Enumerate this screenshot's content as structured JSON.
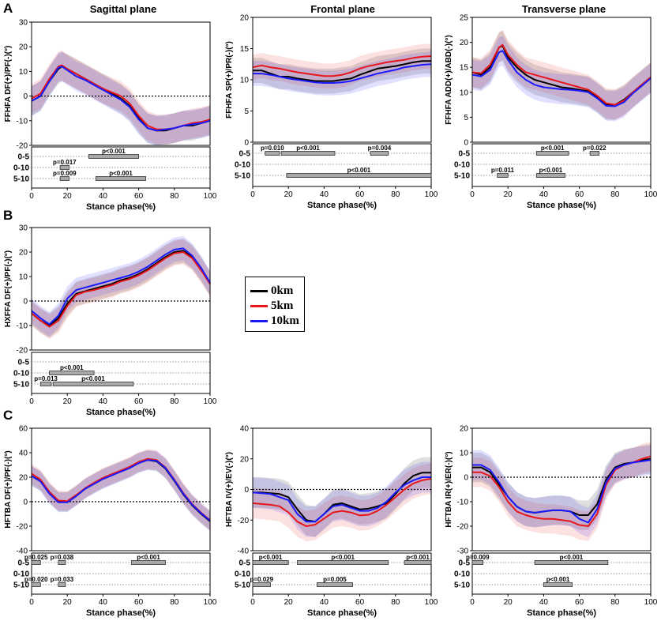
{
  "labels": {
    "A": "A",
    "B": "B",
    "C": "C",
    "sagittal": "Sagittal plane",
    "frontal": "Frontal plane",
    "transverse": "Transverse plane",
    "xlabel": "Stance phase(%)"
  },
  "legend": [
    {
      "name": "0km",
      "color": "#000000"
    },
    {
      "name": "5km",
      "color": "#e8161b"
    },
    {
      "name": "10km",
      "color": "#1a1aff"
    }
  ],
  "chart_data": [
    {
      "id": "A1",
      "type": "line",
      "ylabel": "FFHFA DF(+)/PF(-)(°)",
      "ylim": [
        -20,
        30
      ],
      "yticks": [
        -20,
        -10,
        0,
        10,
        20,
        30
      ],
      "x": [
        0,
        5,
        10,
        15,
        17,
        20,
        25,
        30,
        35,
        40,
        45,
        50,
        55,
        60,
        65,
        70,
        75,
        80,
        85,
        90,
        95,
        100
      ],
      "series": [
        {
          "name": "0km",
          "values": [
            -2,
            0,
            6,
            11,
            12,
            11,
            9,
            7,
            5,
            3,
            1,
            -1,
            -4,
            -9,
            -13,
            -14,
            -14,
            -13,
            -12,
            -12,
            -11,
            -10
          ],
          "sd": 6
        },
        {
          "name": "5km",
          "values": [
            -1,
            1,
            7,
            12,
            12.5,
            11,
            9,
            7,
            5,
            3,
            1.5,
            0,
            -3,
            -8,
            -12,
            -13.5,
            -13.5,
            -13,
            -12,
            -11,
            -10.5,
            -9.5
          ],
          "sd": 6
        },
        {
          "name": "10km",
          "values": [
            -2,
            0,
            6,
            11.5,
            12,
            10.5,
            8,
            6.5,
            4.5,
            2.5,
            0.5,
            -1.5,
            -4.5,
            -9.5,
            -13,
            -14,
            -13.5,
            -13,
            -12,
            -11.5,
            -11,
            -10
          ],
          "sd": 6
        }
      ],
      "sig": {
        "rows": [
          "0-5",
          "0-10",
          "5-10"
        ],
        "bars": [
          {
            "row": 0,
            "x0": 32,
            "x1": 60,
            "p": "p<0.001"
          },
          {
            "row": 1,
            "x0": 16,
            "x1": 21,
            "p": "p=0.017"
          },
          {
            "row": 2,
            "x0": 16,
            "x1": 21,
            "p": "p=0.009"
          },
          {
            "row": 2,
            "x0": 36,
            "x1": 64,
            "p": "p<0.001"
          }
        ]
      }
    },
    {
      "id": "A2",
      "type": "line",
      "ylabel": "FFHFA SP(+)/PR(-)(°)",
      "ylim": [
        0,
        20
      ],
      "yticks": [
        0,
        5,
        10,
        15,
        20
      ],
      "x": [
        0,
        5,
        10,
        15,
        20,
        25,
        30,
        35,
        40,
        45,
        50,
        55,
        60,
        65,
        70,
        75,
        80,
        85,
        90,
        95,
        100
      ],
      "series": [
        {
          "name": "0km",
          "values": [
            11.5,
            11.5,
            11,
            10.5,
            10.5,
            10.2,
            10,
            9.8,
            9.8,
            9.8,
            10,
            10.2,
            10.8,
            11.3,
            11.8,
            12,
            12.2,
            12.5,
            12.8,
            13,
            13
          ],
          "sd": 2
        },
        {
          "name": "5km",
          "values": [
            12,
            12.3,
            12,
            11.8,
            11.5,
            11.2,
            11,
            10.8,
            10.6,
            10.6,
            10.8,
            11.2,
            11.8,
            12.2,
            12.5,
            12.8,
            13,
            13.2,
            13.5,
            13.7,
            13.8
          ],
          "sd": 2
        },
        {
          "name": "10km",
          "values": [
            11,
            11,
            10.8,
            10.5,
            10.2,
            10,
            9.8,
            9.6,
            9.5,
            9.5,
            9.6,
            9.8,
            10.2,
            10.6,
            11,
            11.3,
            11.6,
            12,
            12.2,
            12.4,
            12.5
          ],
          "sd": 2
        }
      ],
      "sig": {
        "rows": [
          "0-5",
          "0-10",
          "5-10"
        ],
        "bars": [
          {
            "row": 0,
            "x0": 7,
            "x1": 15,
            "p": "p=0.010"
          },
          {
            "row": 0,
            "x0": 16,
            "x1": 46,
            "p": "p<0.001"
          },
          {
            "row": 0,
            "x0": 66,
            "x1": 76,
            "p": "p=0.004"
          },
          {
            "row": 2,
            "x0": 19,
            "x1": 100,
            "p": "p<0.001"
          }
        ]
      }
    },
    {
      "id": "A3",
      "type": "line",
      "ylabel": "FFHFA ADD(+)/ABD(-)(°)",
      "ylim": [
        0,
        25
      ],
      "yticks": [
        0,
        5,
        10,
        15,
        20,
        25
      ],
      "x": [
        0,
        5,
        10,
        15,
        17,
        20,
        25,
        30,
        35,
        40,
        45,
        50,
        55,
        60,
        65,
        70,
        75,
        80,
        85,
        90,
        95,
        100
      ],
      "series": [
        {
          "name": "0km",
          "values": [
            14,
            13.5,
            15,
            19,
            19.3,
            17,
            15,
            13.5,
            12.5,
            12,
            11.5,
            11,
            10.8,
            10.5,
            10.2,
            9,
            7.5,
            7.5,
            8.5,
            10,
            11.5,
            13
          ],
          "sd": 3
        },
        {
          "name": "5km",
          "values": [
            14,
            13.8,
            15.5,
            19,
            19.5,
            17.5,
            15.5,
            14,
            13.5,
            13,
            12.5,
            12,
            11.5,
            11,
            10.5,
            9.3,
            7.8,
            7.5,
            8.3,
            10,
            11.5,
            13
          ],
          "sd": 3
        },
        {
          "name": "10km",
          "values": [
            13.5,
            13.2,
            14.5,
            18,
            18.3,
            16.5,
            14,
            12.5,
            11.5,
            11,
            10.8,
            10.6,
            10.5,
            10.3,
            10,
            8.8,
            7.3,
            7.2,
            8,
            9.8,
            11.3,
            12.8
          ],
          "sd": 3
        }
      ],
      "sig": {
        "rows": [
          "0-5",
          "0-10",
          "5-10"
        ],
        "bars": [
          {
            "row": 0,
            "x0": 36,
            "x1": 54,
            "p": "p<0.001"
          },
          {
            "row": 0,
            "x0": 66,
            "x1": 71,
            "p": "p=0.022"
          },
          {
            "row": 2,
            "x0": 14,
            "x1": 20,
            "p": "p=0.011"
          },
          {
            "row": 2,
            "x0": 36,
            "x1": 52,
            "p": "p<0.001"
          }
        ]
      }
    },
    {
      "id": "B1",
      "type": "line",
      "ylabel": "HXFFA DF(+)/PF(-)(°)",
      "ylim": [
        -20,
        30
      ],
      "yticks": [
        -20,
        -10,
        0,
        10,
        20,
        30
      ],
      "x": [
        0,
        5,
        10,
        15,
        20,
        25,
        30,
        35,
        40,
        45,
        50,
        55,
        60,
        65,
        70,
        75,
        80,
        85,
        90,
        95,
        100
      ],
      "series": [
        {
          "name": "0km",
          "values": [
            -5,
            -8,
            -10,
            -7,
            -1,
            3,
            4,
            5,
            6,
            7,
            8.5,
            9.5,
            11,
            13,
            15.5,
            18,
            20,
            20.5,
            18,
            13,
            7
          ],
          "sd": 5
        },
        {
          "name": "5km",
          "values": [
            -5,
            -8,
            -10.5,
            -8,
            -2,
            2.5,
            3.8,
            4.5,
            5.5,
            6.5,
            8,
            9,
            10.5,
            12.5,
            15,
            17.5,
            19.5,
            20,
            17.5,
            12.5,
            7
          ],
          "sd": 5
        },
        {
          "name": "10km",
          "values": [
            -4,
            -7,
            -9.5,
            -6,
            1,
            4.5,
            5.5,
            6.5,
            7.5,
            8.5,
            9.5,
            10.5,
            12,
            14,
            16.5,
            19,
            21,
            21.5,
            18.5,
            13.5,
            7.5
          ],
          "sd": 5
        }
      ],
      "sig": {
        "rows": [
          "0-5",
          "0-10",
          "5-10"
        ],
        "bars": [
          {
            "row": 1,
            "x0": 10,
            "x1": 35,
            "p": "p<0.001"
          },
          {
            "row": 2,
            "x0": 5,
            "x1": 11,
            "p": "p=0.013"
          },
          {
            "row": 2,
            "x0": 12,
            "x1": 57,
            "p": "p<0.001"
          }
        ]
      }
    },
    {
      "id": "C1",
      "type": "line",
      "ylabel": "HFTBA DF(+)/PF(-)(°)",
      "ylim": [
        -40,
        60
      ],
      "yticks": [
        -40,
        -20,
        0,
        20,
        40,
        60
      ],
      "x": [
        0,
        5,
        10,
        15,
        20,
        25,
        30,
        35,
        40,
        45,
        50,
        55,
        60,
        65,
        70,
        75,
        80,
        85,
        90,
        95,
        100
      ],
      "series": [
        {
          "name": "0km",
          "values": [
            21,
            17,
            7,
            0,
            0,
            5,
            11,
            15,
            19,
            22,
            25,
            28,
            32,
            34,
            33,
            27,
            17,
            6,
            -3,
            -10,
            -16
          ],
          "sd": 8
        },
        {
          "name": "5km",
          "values": [
            23,
            18,
            8,
            1,
            0.5,
            5.5,
            11,
            15.5,
            19.5,
            22.5,
            25.5,
            28.5,
            32.5,
            35,
            34,
            28,
            18,
            7,
            -2,
            -9,
            -15
          ],
          "sd": 8
        },
        {
          "name": "10km",
          "values": [
            21,
            16.5,
            6.5,
            -0.5,
            -0.5,
            4.5,
            10.5,
            14.5,
            18.5,
            21.5,
            24.5,
            27.5,
            31.5,
            34,
            33.5,
            27.5,
            17.5,
            6.5,
            -2.5,
            -9.5,
            -15.5
          ],
          "sd": 8
        }
      ],
      "sig": {
        "rows": [
          "0-5",
          "0-10",
          "5-10"
        ],
        "bars": [
          {
            "row": 0,
            "x0": 0,
            "x1": 5,
            "p": "p=0.025"
          },
          {
            "row": 0,
            "x0": 15,
            "x1": 19,
            "p": "p=0.038"
          },
          {
            "row": 0,
            "x0": 56,
            "x1": 75,
            "p": "p<0.001"
          },
          {
            "row": 2,
            "x0": 0,
            "x1": 5,
            "p": "p=0.020"
          },
          {
            "row": 2,
            "x0": 15,
            "x1": 19,
            "p": "p=0.033"
          }
        ]
      }
    },
    {
      "id": "C2",
      "type": "line",
      "ylabel": "HFTBA IV(+)/EV(-)(°)",
      "ylim": [
        -40,
        40
      ],
      "yticks": [
        -40,
        -20,
        0,
        20,
        40
      ],
      "x": [
        0,
        5,
        10,
        15,
        20,
        25,
        30,
        35,
        40,
        45,
        50,
        55,
        60,
        65,
        70,
        75,
        80,
        85,
        90,
        95,
        100
      ],
      "series": [
        {
          "name": "0km",
          "values": [
            -2,
            -2,
            -2.5,
            -3,
            -5,
            -13,
            -20,
            -21,
            -16,
            -10,
            -9,
            -11,
            -13,
            -12.5,
            -11,
            -9,
            -3,
            4,
            9,
            11,
            11
          ],
          "sd": 10
        },
        {
          "name": "5km",
          "values": [
            -9,
            -9.5,
            -10,
            -11,
            -15,
            -21,
            -24,
            -23,
            -19,
            -15,
            -14,
            -15,
            -17,
            -16.5,
            -14,
            -10,
            -5,
            0,
            4,
            6,
            7
          ],
          "sd": 10
        },
        {
          "name": "10km",
          "values": [
            -2,
            -2.5,
            -3,
            -5,
            -7,
            -16,
            -21,
            -21,
            -16,
            -11,
            -10,
            -12,
            -14,
            -14,
            -12,
            -8,
            -2,
            3,
            6,
            8,
            8
          ],
          "sd": 10
        }
      ],
      "sig": {
        "rows": [
          "0-5",
          "0-10",
          "5-10"
        ],
        "bars": [
          {
            "row": 0,
            "x0": 0,
            "x1": 20,
            "p": "p<0.001"
          },
          {
            "row": 0,
            "x0": 25,
            "x1": 76,
            "p": "p<0.001"
          },
          {
            "row": 0,
            "x0": 85,
            "x1": 100,
            "p": "p<0.001"
          },
          {
            "row": 2,
            "x0": 0,
            "x1": 10,
            "p": "p=0.029"
          },
          {
            "row": 2,
            "x0": 36,
            "x1": 56,
            "p": "p=0.005"
          }
        ]
      }
    },
    {
      "id": "C3",
      "type": "line",
      "ylabel": "HFTBA IR(+)/ER(-)(°)",
      "ylim": [
        -30,
        20
      ],
      "yticks": [
        -30,
        -20,
        -10,
        0,
        10,
        20
      ],
      "x": [
        0,
        5,
        10,
        15,
        20,
        25,
        30,
        35,
        40,
        45,
        50,
        55,
        60,
        65,
        70,
        75,
        80,
        85,
        90,
        95,
        100
      ],
      "series": [
        {
          "name": "0km",
          "values": [
            4,
            4,
            2,
            -3,
            -8,
            -12,
            -14,
            -14.5,
            -14,
            -13.5,
            -13.5,
            -14,
            -15.5,
            -15.5,
            -11,
            -1,
            4,
            5.5,
            6,
            7,
            7.5
          ],
          "sd": 6
        },
        {
          "name": "5km",
          "values": [
            2,
            2,
            0.5,
            -4,
            -10,
            -14,
            -15.5,
            -16.5,
            -17,
            -17,
            -17.5,
            -18,
            -19.5,
            -20,
            -15,
            -3,
            3,
            5,
            6,
            7.5,
            8.5
          ],
          "sd": 6
        },
        {
          "name": "10km",
          "values": [
            5,
            5,
            3,
            -2,
            -8,
            -12,
            -14,
            -14.5,
            -14,
            -13.5,
            -13.5,
            -14,
            -17,
            -18.5,
            -13,
            -2,
            3.5,
            5,
            6,
            6.5,
            7
          ],
          "sd": 6
        }
      ],
      "sig": {
        "rows": [
          "0-5",
          "0-10",
          "5-10"
        ],
        "bars": [
          {
            "row": 0,
            "x0": 0,
            "x1": 6,
            "p": "p=0.009"
          },
          {
            "row": 0,
            "x0": 35,
            "x1": 76,
            "p": "p<0.001"
          },
          {
            "row": 2,
            "x0": 40,
            "x1": 56,
            "p": "p<0.001"
          }
        ]
      }
    }
  ]
}
